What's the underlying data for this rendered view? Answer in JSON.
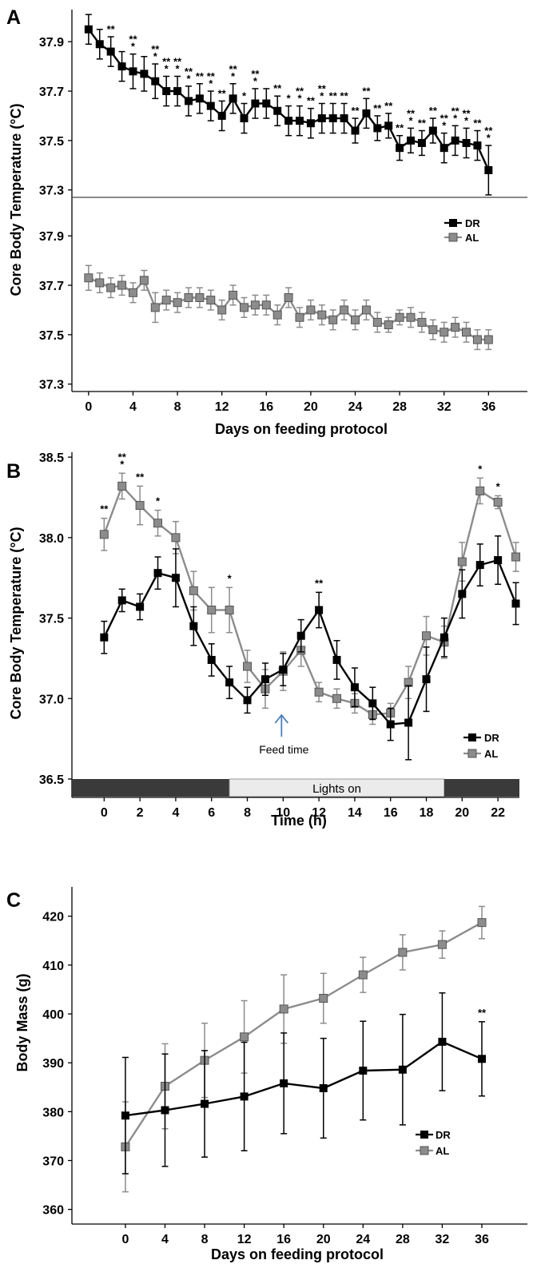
{
  "chart_data": [
    {
      "type": "line",
      "panel_label": "A",
      "ylabel": "Core Body Temperature (°C)",
      "xlabel": "Days on feeding protocol",
      "x_ticks": [
        0,
        4,
        8,
        12,
        16,
        20,
        24,
        28,
        32,
        36
      ],
      "xlim": [
        -1.5,
        39.5
      ],
      "legend": [
        "DR",
        "AL"
      ],
      "legend_position": "right, lower subplot",
      "colors": {
        "DR": "#000000",
        "AL": "#8c8c8c"
      },
      "subplots": [
        {
          "series": "DR",
          "y_ticks": [
            37.3,
            37.5,
            37.7,
            37.9
          ],
          "ylim": [
            37.27,
            38.03
          ],
          "x": [
            0,
            1,
            2,
            3,
            4,
            5,
            6,
            7,
            8,
            9,
            10,
            11,
            12,
            13,
            14,
            15,
            16,
            17,
            18,
            19,
            20,
            21,
            22,
            23,
            24,
            25,
            26,
            27,
            28,
            29,
            30,
            31,
            32,
            33,
            34,
            35,
            36
          ],
          "y": [
            37.95,
            37.89,
            37.86,
            37.8,
            37.78,
            37.77,
            37.74,
            37.7,
            37.7,
            37.66,
            37.67,
            37.64,
            37.6,
            37.67,
            37.59,
            37.65,
            37.65,
            37.62,
            37.58,
            37.58,
            37.57,
            37.59,
            37.59,
            37.59,
            37.54,
            37.61,
            37.55,
            37.56,
            37.47,
            37.5,
            37.49,
            37.54,
            37.47,
            37.5,
            37.49,
            37.48,
            37.38
          ],
          "error": [
            0.06,
            0.06,
            0.06,
            0.06,
            0.07,
            0.07,
            0.07,
            0.06,
            0.06,
            0.06,
            0.06,
            0.06,
            0.06,
            0.06,
            0.06,
            0.06,
            0.06,
            0.06,
            0.06,
            0.06,
            0.06,
            0.06,
            0.06,
            0.06,
            0.05,
            0.06,
            0.05,
            0.05,
            0.05,
            0.05,
            0.05,
            0.05,
            0.06,
            0.06,
            0.06,
            0.06,
            0.1
          ],
          "significance": [
            {
              "x": 2,
              "label": "**"
            },
            {
              "x": 4,
              "label": "***"
            },
            {
              "x": 6,
              "label": "***"
            },
            {
              "x": 7,
              "label": "***"
            },
            {
              "x": 8,
              "label": "***"
            },
            {
              "x": 9,
              "label": "***"
            },
            {
              "x": 10,
              "label": "**"
            },
            {
              "x": 11,
              "label": "***"
            },
            {
              "x": 12,
              "label": "**"
            },
            {
              "x": 13,
              "label": "***"
            },
            {
              "x": 14,
              "label": "*"
            },
            {
              "x": 15,
              "label": "***"
            },
            {
              "x": 17,
              "label": "**"
            },
            {
              "x": 18,
              "label": "*"
            },
            {
              "x": 19,
              "label": "***"
            },
            {
              "x": 20,
              "label": "**"
            },
            {
              "x": 21,
              "label": "***"
            },
            {
              "x": 22,
              "label": "**"
            },
            {
              "x": 23,
              "label": "**"
            },
            {
              "x": 24,
              "label": "**"
            },
            {
              "x": 25,
              "label": "**"
            },
            {
              "x": 26,
              "label": "**"
            },
            {
              "x": 27,
              "label": "**"
            },
            {
              "x": 28,
              "label": "**"
            },
            {
              "x": 29,
              "label": "***"
            },
            {
              "x": 30,
              "label": "**"
            },
            {
              "x": 31,
              "label": "**"
            },
            {
              "x": 32,
              "label": "***"
            },
            {
              "x": 33,
              "label": "***"
            },
            {
              "x": 34,
              "label": "***"
            },
            {
              "x": 35,
              "label": "**"
            },
            {
              "x": 36,
              "label": "***"
            }
          ]
        },
        {
          "series": "AL",
          "y_ticks": [
            37.3,
            37.5,
            37.7,
            37.9
          ],
          "ylim": [
            37.27,
            38.03
          ],
          "x": [
            0,
            1,
            2,
            3,
            4,
            5,
            6,
            7,
            8,
            9,
            10,
            11,
            12,
            13,
            14,
            15,
            16,
            17,
            18,
            19,
            20,
            21,
            22,
            23,
            24,
            25,
            26,
            27,
            28,
            29,
            30,
            31,
            32,
            33,
            34,
            35,
            36
          ],
          "y": [
            37.73,
            37.71,
            37.69,
            37.7,
            37.67,
            37.72,
            37.61,
            37.64,
            37.63,
            37.65,
            37.65,
            37.64,
            37.6,
            37.66,
            37.61,
            37.62,
            37.62,
            37.58,
            37.65,
            37.57,
            37.6,
            37.58,
            37.56,
            37.6,
            37.56,
            37.6,
            37.55,
            37.54,
            37.57,
            37.57,
            37.55,
            37.52,
            37.51,
            37.53,
            37.51,
            37.48,
            37.48
          ],
          "error": [
            0.05,
            0.04,
            0.04,
            0.04,
            0.04,
            0.04,
            0.06,
            0.04,
            0.04,
            0.04,
            0.04,
            0.04,
            0.04,
            0.04,
            0.04,
            0.04,
            0.04,
            0.04,
            0.04,
            0.04,
            0.04,
            0.04,
            0.04,
            0.04,
            0.04,
            0.04,
            0.04,
            0.03,
            0.03,
            0.04,
            0.04,
            0.04,
            0.04,
            0.04,
            0.04,
            0.04,
            0.04
          ]
        }
      ]
    },
    {
      "type": "line",
      "panel_label": "B",
      "ylabel": "Core Body Temperature (°C)",
      "xlabel": "Time (h)",
      "x_ticks": [
        0,
        2,
        4,
        6,
        8,
        10,
        12,
        14,
        16,
        18,
        20,
        22
      ],
      "y_ticks": [
        36.5,
        37.0,
        37.5,
        38.0,
        38.5
      ],
      "y_tick_labels": [
        "36.5",
        "37.0",
        "37.5",
        "38.0",
        "38.5"
      ],
      "xlim": [
        -1.8,
        23.2
      ],
      "ylim": [
        36.5,
        38.6
      ],
      "legend": [
        "DR",
        "AL"
      ],
      "legend_position": "bottom-right",
      "colors": {
        "DR": "#000000",
        "AL": "#8c8c8c"
      },
      "series": [
        {
          "name": "DR",
          "x": [
            0,
            1,
            2,
            3,
            4,
            5,
            6,
            7,
            8,
            9,
            10,
            11,
            12,
            13,
            14,
            15,
            16,
            17,
            18,
            19,
            20,
            21,
            22,
            23
          ],
          "y": [
            37.38,
            37.61,
            37.57,
            37.78,
            37.75,
            37.45,
            37.24,
            37.1,
            36.99,
            37.12,
            37.18,
            37.39,
            37.55,
            37.24,
            37.07,
            36.97,
            36.84,
            36.85,
            37.12,
            37.38,
            37.65,
            37.83,
            37.86,
            37.59
          ],
          "error": [
            0.1,
            0.07,
            0.08,
            0.1,
            0.18,
            0.12,
            0.1,
            0.1,
            0.08,
            0.1,
            0.1,
            0.1,
            0.11,
            0.12,
            0.12,
            0.1,
            0.1,
            0.23,
            0.2,
            0.12,
            0.15,
            0.13,
            0.15,
            0.13
          ]
        },
        {
          "name": "AL",
          "x": [
            0,
            1,
            2,
            3,
            4,
            5,
            6,
            7,
            8,
            9,
            10,
            11,
            12,
            13,
            14,
            15,
            16,
            17,
            18,
            19,
            20,
            21,
            22,
            23
          ],
          "y": [
            38.02,
            38.32,
            38.2,
            38.09,
            38.0,
            37.67,
            37.55,
            37.55,
            37.2,
            37.06,
            37.17,
            37.3,
            37.04,
            37.0,
            36.97,
            36.9,
            36.91,
            37.1,
            37.39,
            37.35,
            37.85,
            38.29,
            38.22,
            37.88
          ],
          "error": [
            0.1,
            0.08,
            0.12,
            0.08,
            0.1,
            0.12,
            0.14,
            0.14,
            0.1,
            0.12,
            0.12,
            0.1,
            0.06,
            0.06,
            0.06,
            0.06,
            0.06,
            0.1,
            0.12,
            0.1,
            0.12,
            0.08,
            0.04,
            0.09
          ]
        }
      ],
      "significance": [
        {
          "x": 0,
          "label": "**"
        },
        {
          "x": 1,
          "label": "***"
        },
        {
          "x": 2,
          "label": "**"
        },
        {
          "x": 3,
          "label": "*"
        },
        {
          "x": 7,
          "label": "*"
        },
        {
          "x": 12,
          "label": "**"
        },
        {
          "x": 21,
          "label": "*"
        },
        {
          "x": 22,
          "label": "*"
        }
      ],
      "annotation": {
        "text": "Feed time",
        "x": 10
      },
      "light_bar": {
        "label": "Lights on",
        "lights_on": [
          7,
          19
        ]
      }
    },
    {
      "type": "line",
      "panel_label": "C",
      "ylabel": "Body Mass (g)",
      "xlabel": "Days on feeding protocol",
      "x_ticks": [
        0,
        4,
        8,
        12,
        16,
        20,
        24,
        28,
        32,
        36
      ],
      "y_ticks": [
        360,
        370,
        380,
        390,
        400,
        410,
        420
      ],
      "xlim": [
        -5.4,
        40.6
      ],
      "ylim": [
        357,
        426
      ],
      "legend": [
        "DR",
        "AL"
      ],
      "legend_position": "bottom-right",
      "colors": {
        "DR": "#000000",
        "AL": "#8c8c8c"
      },
      "series": [
        {
          "name": "DR",
          "x": [
            0,
            4,
            8,
            12,
            16,
            20,
            24,
            28,
            32,
            36
          ],
          "y": [
            379.2,
            380.3,
            381.6,
            383.1,
            385.8,
            384.8,
            388.4,
            388.6,
            394.3,
            390.8
          ],
          "error": [
            11.9,
            11.5,
            10.9,
            11.1,
            10.3,
            10.2,
            10.1,
            11.3,
            10.0,
            7.6
          ]
        },
        {
          "name": "AL",
          "x": [
            0,
            4,
            8,
            12,
            16,
            20,
            24,
            28,
            32,
            36
          ],
          "y": [
            372.8,
            385.2,
            390.5,
            395.3,
            401.0,
            403.2,
            408.0,
            412.6,
            414.2,
            418.7
          ],
          "error": [
            9.2,
            8.7,
            7.6,
            7.4,
            7.0,
            5.1,
            3.6,
            3.6,
            2.8,
            3.3
          ]
        }
      ],
      "significance": [
        {
          "x": 36,
          "label": "**"
        }
      ]
    }
  ]
}
